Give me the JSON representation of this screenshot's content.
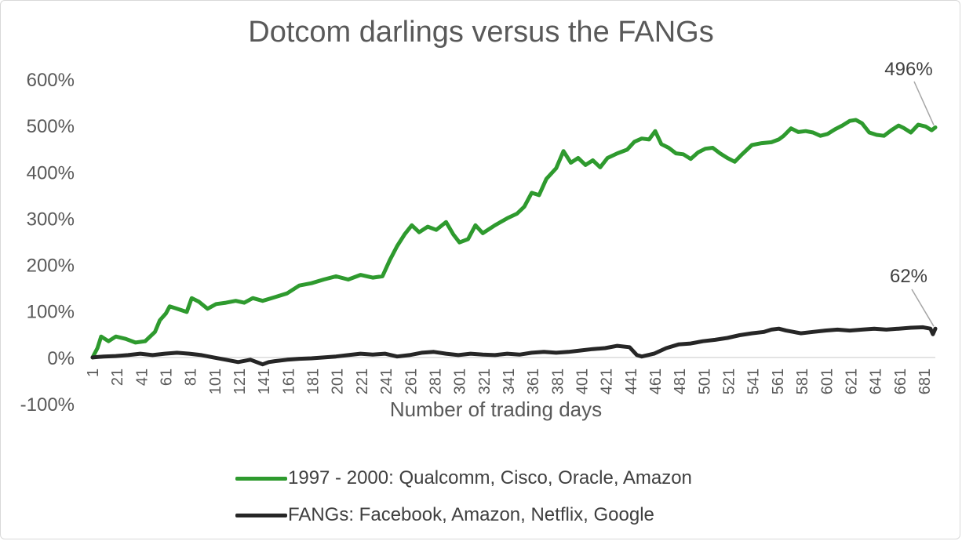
{
  "chart_data": {
    "type": "line",
    "title": "Dotcom darlings versus the FANGs",
    "xlabel": "Number of trading days",
    "ylabel": "",
    "ylim": [
      -100,
      600
    ],
    "ytick_labels": [
      "-100%",
      "0%",
      "100%",
      "200%",
      "300%",
      "400%",
      "500%",
      "600%"
    ],
    "ytick_values": [
      -100,
      0,
      100,
      200,
      300,
      400,
      500,
      600
    ],
    "xtick_labels": [
      "1",
      "21",
      "41",
      "61",
      "81",
      "101",
      "121",
      "141",
      "161",
      "181",
      "201",
      "221",
      "241",
      "261",
      "281",
      "301",
      "321",
      "341",
      "361",
      "381",
      "401",
      "421",
      "441",
      "461",
      "481",
      "501",
      "521",
      "541",
      "561",
      "581",
      "601",
      "621",
      "641",
      "661",
      "681"
    ],
    "xlim": [
      1,
      690
    ],
    "grid": false,
    "legend_position": "bottom",
    "series": [
      {
        "name": "1997 - 2000: Qualcomm, Cisco, Oracle, Amazon",
        "color": "#2e9a2e",
        "end_label": "496%",
        "points": [
          [
            1,
            0
          ],
          [
            5,
            20
          ],
          [
            8,
            45
          ],
          [
            14,
            35
          ],
          [
            20,
            45
          ],
          [
            28,
            40
          ],
          [
            36,
            32
          ],
          [
            44,
            35
          ],
          [
            52,
            55
          ],
          [
            56,
            80
          ],
          [
            61,
            95
          ],
          [
            64,
            110
          ],
          [
            70,
            105
          ],
          [
            78,
            98
          ],
          [
            82,
            128
          ],
          [
            88,
            120
          ],
          [
            95,
            105
          ],
          [
            102,
            115
          ],
          [
            110,
            118
          ],
          [
            118,
            122
          ],
          [
            125,
            118
          ],
          [
            132,
            128
          ],
          [
            140,
            122
          ],
          [
            150,
            130
          ],
          [
            160,
            138
          ],
          [
            170,
            155
          ],
          [
            180,
            160
          ],
          [
            190,
            168
          ],
          [
            200,
            175
          ],
          [
            210,
            168
          ],
          [
            220,
            178
          ],
          [
            230,
            172
          ],
          [
            238,
            175
          ],
          [
            244,
            210
          ],
          [
            250,
            240
          ],
          [
            256,
            265
          ],
          [
            262,
            285
          ],
          [
            268,
            270
          ],
          [
            275,
            282
          ],
          [
            282,
            275
          ],
          [
            290,
            292
          ],
          [
            296,
            265
          ],
          [
            301,
            248
          ],
          [
            308,
            255
          ],
          [
            314,
            285
          ],
          [
            320,
            268
          ],
          [
            330,
            285
          ],
          [
            340,
            300
          ],
          [
            348,
            310
          ],
          [
            354,
            325
          ],
          [
            360,
            355
          ],
          [
            366,
            350
          ],
          [
            372,
            385
          ],
          [
            380,
            408
          ],
          [
            386,
            445
          ],
          [
            392,
            420
          ],
          [
            398,
            430
          ],
          [
            404,
            415
          ],
          [
            410,
            425
          ],
          [
            416,
            410
          ],
          [
            422,
            430
          ],
          [
            430,
            440
          ],
          [
            438,
            448
          ],
          [
            444,
            465
          ],
          [
            450,
            472
          ],
          [
            456,
            470
          ],
          [
            461,
            488
          ],
          [
            466,
            460
          ],
          [
            472,
            452
          ],
          [
            478,
            440
          ],
          [
            484,
            438
          ],
          [
            490,
            428
          ],
          [
            496,
            442
          ],
          [
            502,
            450
          ],
          [
            508,
            452
          ],
          [
            514,
            440
          ],
          [
            520,
            430
          ],
          [
            526,
            422
          ],
          [
            532,
            438
          ],
          [
            540,
            458
          ],
          [
            548,
            462
          ],
          [
            556,
            464
          ],
          [
            562,
            470
          ],
          [
            566,
            478
          ],
          [
            572,
            494
          ],
          [
            578,
            486
          ],
          [
            584,
            488
          ],
          [
            590,
            485
          ],
          [
            596,
            478
          ],
          [
            602,
            482
          ],
          [
            608,
            492
          ],
          [
            614,
            500
          ],
          [
            620,
            510
          ],
          [
            625,
            512
          ],
          [
            630,
            505
          ],
          [
            636,
            485
          ],
          [
            642,
            480
          ],
          [
            648,
            478
          ],
          [
            654,
            490
          ],
          [
            660,
            500
          ],
          [
            664,
            495
          ],
          [
            670,
            485
          ],
          [
            676,
            502
          ],
          [
            682,
            498
          ],
          [
            687,
            490
          ],
          [
            690,
            496
          ]
        ]
      },
      {
        "name": "FANGs: Facebook, Amazon, Netflix, Google",
        "color": "#262626",
        "end_label": "62%",
        "points": [
          [
            1,
            0
          ],
          [
            10,
            2
          ],
          [
            20,
            3
          ],
          [
            30,
            5
          ],
          [
            40,
            8
          ],
          [
            50,
            5
          ],
          [
            60,
            8
          ],
          [
            70,
            10
          ],
          [
            80,
            8
          ],
          [
            90,
            5
          ],
          [
            100,
            0
          ],
          [
            110,
            -5
          ],
          [
            120,
            -10
          ],
          [
            130,
            -5
          ],
          [
            140,
            -15
          ],
          [
            145,
            -10
          ],
          [
            150,
            -8
          ],
          [
            160,
            -5
          ],
          [
            170,
            -3
          ],
          [
            180,
            -2
          ],
          [
            190,
            0
          ],
          [
            200,
            2
          ],
          [
            210,
            5
          ],
          [
            220,
            8
          ],
          [
            230,
            6
          ],
          [
            240,
            8
          ],
          [
            250,
            2
          ],
          [
            260,
            5
          ],
          [
            270,
            10
          ],
          [
            280,
            12
          ],
          [
            290,
            8
          ],
          [
            300,
            5
          ],
          [
            310,
            8
          ],
          [
            320,
            6
          ],
          [
            330,
            5
          ],
          [
            340,
            8
          ],
          [
            350,
            6
          ],
          [
            360,
            10
          ],
          [
            370,
            12
          ],
          [
            380,
            10
          ],
          [
            390,
            12
          ],
          [
            400,
            15
          ],
          [
            410,
            18
          ],
          [
            420,
            20
          ],
          [
            430,
            25
          ],
          [
            440,
            22
          ],
          [
            446,
            5
          ],
          [
            450,
            2
          ],
          [
            460,
            8
          ],
          [
            470,
            20
          ],
          [
            480,
            28
          ],
          [
            490,
            30
          ],
          [
            500,
            35
          ],
          [
            510,
            38
          ],
          [
            520,
            42
          ],
          [
            530,
            48
          ],
          [
            540,
            52
          ],
          [
            550,
            55
          ],
          [
            556,
            60
          ],
          [
            562,
            62
          ],
          [
            568,
            58
          ],
          [
            574,
            55
          ],
          [
            580,
            52
          ],
          [
            590,
            55
          ],
          [
            600,
            58
          ],
          [
            610,
            60
          ],
          [
            620,
            58
          ],
          [
            630,
            60
          ],
          [
            640,
            62
          ],
          [
            650,
            60
          ],
          [
            660,
            62
          ],
          [
            670,
            64
          ],
          [
            680,
            65
          ],
          [
            686,
            62
          ],
          [
            688,
            50
          ],
          [
            690,
            62
          ]
        ]
      }
    ]
  }
}
